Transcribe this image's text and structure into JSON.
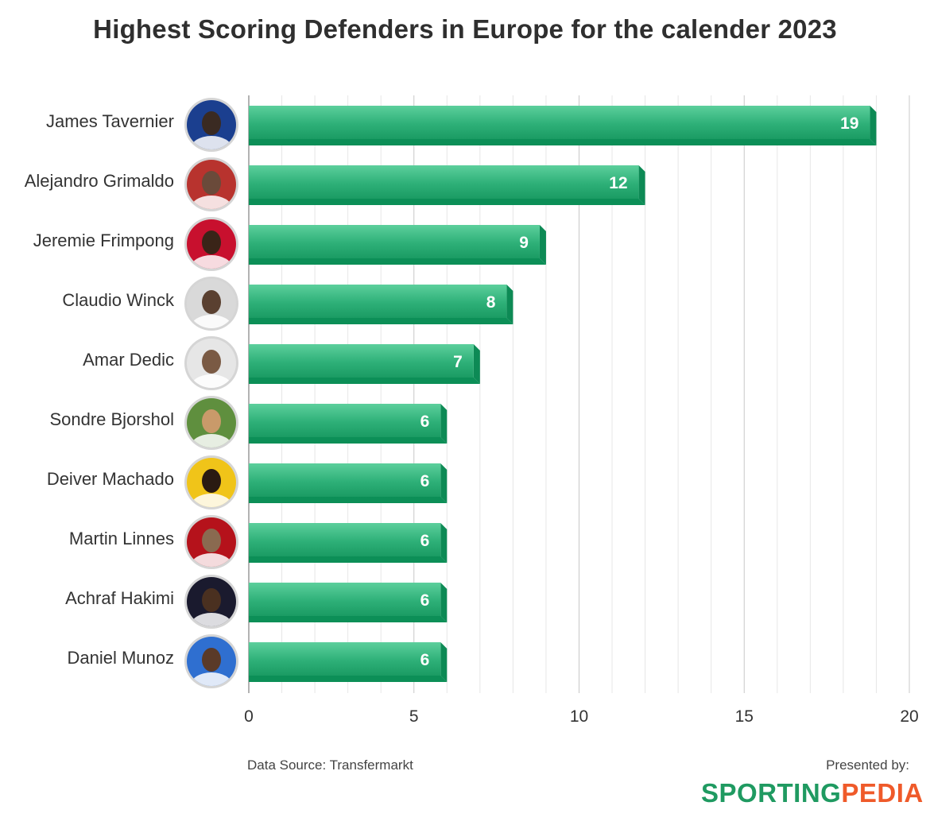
{
  "chart_data": {
    "type": "bar",
    "orientation": "horizontal",
    "title": "Highest Scoring Defenders in Europe for the calender 2023",
    "categories": [
      "James Tavernier",
      "Alejandro Grimaldo",
      "Jeremie Frimpong",
      "Claudio Winck",
      "Amar Dedic",
      "Sondre Bjorshol",
      "Deiver Machado",
      "Martin Linnes",
      "Achraf Hakimi",
      "Daniel Munoz"
    ],
    "values": [
      19,
      12,
      9,
      8,
      7,
      6,
      6,
      6,
      6,
      6
    ],
    "value_labels": [
      "19",
      "12",
      "9",
      "8",
      "7",
      "6",
      "6",
      "6",
      "6",
      "6"
    ],
    "xlim": [
      0,
      20
    ],
    "x_ticks": [
      0,
      5,
      10,
      15,
      20
    ],
    "x_tick_labels": [
      "0",
      "5",
      "10",
      "15",
      "20"
    ],
    "grid": true,
    "bar_color": "#1fa46c",
    "bar_color_light": "#52c995",
    "bar_color_dark": "#0d8a55"
  },
  "footer": {
    "source": "Data Source: Transfermarkt",
    "presented_by": "Presented by:",
    "logo_part1": "SPORTING",
    "logo_part2": "PEDIA"
  },
  "colors": {
    "logo_green": "#1f9a61",
    "logo_orange": "#ef5a2a"
  }
}
